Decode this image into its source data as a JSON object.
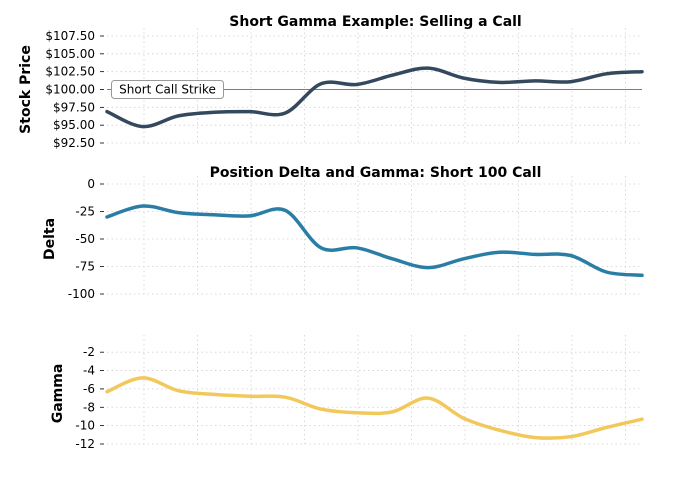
{
  "chart_data": [
    {
      "type": "line",
      "title": "Short Gamma Example: Selling a Call",
      "xlabel": "",
      "ylabel": "Stock Price",
      "ylim": [
        92.5,
        107.5
      ],
      "yticks": [
        92.5,
        95.0,
        97.5,
        100.0,
        102.5,
        105.0,
        107.5
      ],
      "ytick_labels": [
        "$92.50",
        "$95.00",
        "$97.50",
        "$100.00",
        "$102.50",
        "$105.00",
        "$107.50"
      ],
      "xlim": [
        0,
        30
      ],
      "grid": true,
      "series": [
        {
          "color": "#34495e",
          "x": [
            0,
            2,
            4,
            6,
            8,
            10,
            12,
            14,
            16,
            18,
            20,
            22,
            24,
            26,
            28,
            30
          ],
          "y": [
            96.9,
            94.8,
            96.3,
            96.8,
            96.9,
            96.7,
            100.8,
            100.7,
            102.0,
            103.0,
            101.6,
            101.0,
            101.2,
            101.1,
            102.2,
            102.5
          ]
        }
      ],
      "reference_line": {
        "y": 100.0,
        "color": "#27ae60"
      },
      "annotation": {
        "text": "Short Call Strike",
        "x": 3,
        "y": 100.0
      }
    },
    {
      "type": "line",
      "title": "Position Delta and Gamma: Short 100 Call",
      "xlabel": "",
      "ylabel": "Delta",
      "ylim": [
        -100,
        0
      ],
      "yticks": [
        0,
        -25,
        -50,
        -75,
        -100
      ],
      "ytick_labels": [
        "0",
        "-25",
        "-50",
        "-75",
        "-100"
      ],
      "xlim": [
        0,
        30
      ],
      "grid": true,
      "series": [
        {
          "color": "#2a7ea6",
          "x": [
            0,
            2,
            4,
            6,
            8,
            10,
            12,
            14,
            16,
            18,
            20,
            22,
            24,
            26,
            28,
            30
          ],
          "y": [
            -30,
            -20,
            -26,
            -28,
            -29,
            -24,
            -58,
            -58,
            -68,
            -76,
            -68,
            -62,
            -64,
            -65,
            -80,
            -83
          ]
        }
      ]
    },
    {
      "type": "line",
      "title": "",
      "xlabel": "",
      "ylabel": "Gamma",
      "ylim": [
        -12,
        -1
      ],
      "yticks": [
        -2,
        -4,
        -6,
        -8,
        -10,
        -12
      ],
      "ytick_labels": [
        "-2",
        "-4",
        "-6",
        "-8",
        "-10",
        "-12"
      ],
      "xlim": [
        0,
        30
      ],
      "grid": true,
      "series": [
        {
          "color": "#f2c85b",
          "x": [
            0,
            2,
            4,
            6,
            8,
            10,
            12,
            14,
            16,
            18,
            20,
            22,
            24,
            26,
            28,
            30
          ],
          "y": [
            -6.3,
            -4.8,
            -6.2,
            -6.6,
            -6.8,
            -6.9,
            -8.2,
            -8.6,
            -8.5,
            -7.0,
            -9.2,
            -10.5,
            -11.3,
            -11.2,
            -10.2,
            -9.3
          ]
        }
      ]
    }
  ]
}
